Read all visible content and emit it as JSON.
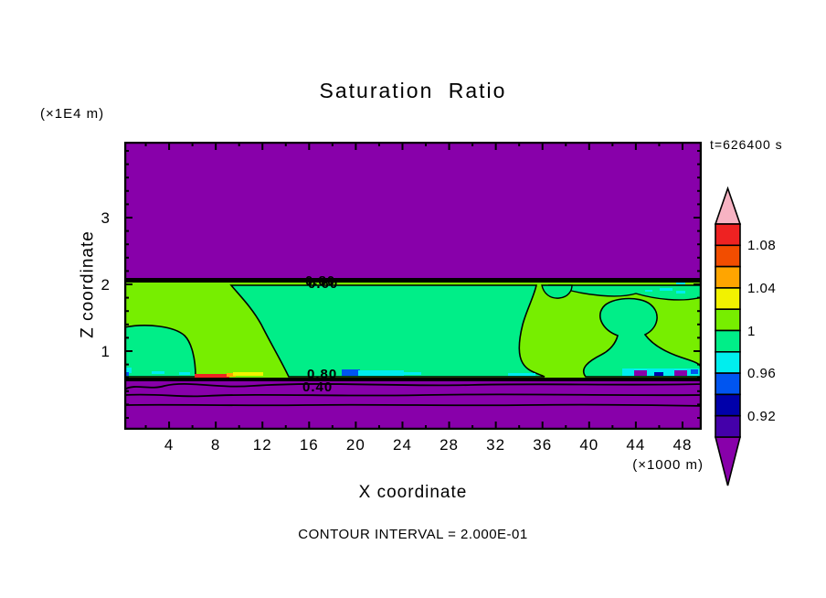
{
  "title": "Saturation Ratio",
  "time_label": "t=626400 s",
  "y_axis_unit": "(×1E4 m)",
  "x_axis_unit": "(×1000 m)",
  "x_axis_label": "X coordinate",
  "y_axis_label": "Z coordinate",
  "footer": "CONTOUR INTERVAL = 2.000E-01",
  "palette": {
    "purple": "#8800AA",
    "indigo": "#4400AA",
    "navy": "#0000AA",
    "blue": "#0055F0",
    "cyan": "#00EEEE",
    "spring_green": "#00EE88",
    "yellow_green": "#77EE00",
    "yellow": "#F2F200",
    "orange": "#FFA500",
    "orange_red": "#F24D00",
    "red": "#EE2222",
    "pink": "#F7B3C3",
    "line": "#000000"
  },
  "x_ticks": {
    "major": [
      4,
      8,
      12,
      16,
      20,
      24,
      28,
      32,
      36,
      40,
      44,
      48
    ],
    "minor": [
      2,
      6,
      10,
      14,
      18,
      22,
      26,
      30,
      34,
      38,
      42,
      46
    ]
  },
  "y_ticks": {
    "major": [
      1,
      2,
      3
    ],
    "minor_step": 0.2,
    "minor_min": 0,
    "minor_max": 4.0
  },
  "colorbar": {
    "above_max_color": "#F7B3C3",
    "below_min_color": "#8800AA",
    "segments_top_to_bottom": [
      {
        "range": "1.08–1.10",
        "color": "#EE2222"
      },
      {
        "range": "1.06–1.08",
        "color": "#F24D00"
      },
      {
        "range": "1.04–1.06",
        "color": "#FFA500"
      },
      {
        "range": "1.02–1.04",
        "color": "#F2F200"
      },
      {
        "range": "1.00–1.02",
        "color": "#77EE00"
      },
      {
        "range": "0.98–1.00",
        "color": "#00EE88"
      },
      {
        "range": "0.96–0.98",
        "color": "#00EEEE"
      },
      {
        "range": "0.94–0.96",
        "color": "#0055F0"
      },
      {
        "range": "0.92–0.94",
        "color": "#0000AA"
      },
      {
        "range": "0.90–0.92",
        "color": "#4400AA"
      }
    ],
    "labels": [
      {
        "text": "1.08",
        "boundary_index": 1
      },
      {
        "text": "1.04",
        "boundary_index": 3
      },
      {
        "text": "1",
        "boundary_index": 5
      },
      {
        "text": "0.96",
        "boundary_index": 7
      },
      {
        "text": "0.92",
        "boundary_index": 9
      }
    ]
  },
  "contour_labels": {
    "top_a": "0.80",
    "top_b": "0.60",
    "mid": "0.80",
    "low": "0.40"
  },
  "chart_data": {
    "type": "heatmap",
    "title": "Saturation Ratio",
    "xlabel": "X coordinate",
    "ylabel": "Z coordinate",
    "x_units": "×1000 m",
    "y_units": "×1E4 m",
    "time": "t=626400 s",
    "contour_interval": 0.2,
    "labeled_contours": [
      0.4,
      0.6,
      0.8
    ],
    "x_ticks": [
      4,
      8,
      12,
      16,
      20,
      24,
      28,
      32,
      36,
      40,
      44,
      48
    ],
    "y_ticks": [
      1,
      2,
      3
    ],
    "x_range_approx": [
      0,
      49.5
    ],
    "y_range_approx": [
      -0.2,
      4.1
    ],
    "colorbar_boundaries": [
      0.9,
      0.92,
      0.94,
      0.96,
      0.98,
      1.0,
      1.02,
      1.04,
      1.06,
      1.08,
      1.1
    ],
    "colorbar_tick_labels": [
      "1.08",
      "1.04",
      "1",
      "0.96",
      "0.92"
    ],
    "regions": [
      {
        "name": "upper region",
        "z_extent_1e4m": [
          2.05,
          4.1
        ],
        "saturation": "< 0.90",
        "color": "purple"
      },
      {
        "name": "cloud band",
        "z_extent_1e4m": [
          0.68,
          2.05
        ],
        "saturation": "0.98–1.02",
        "color": "yellow-green with spring-green patches"
      },
      {
        "name": "sub-cloud strip",
        "z_extent_1e4m": [
          0.6,
          0.68
        ],
        "saturation": "patches 0.90–1.10 (red/yellow/cyan/blue specks)",
        "color": "mixed"
      },
      {
        "name": "lower region",
        "z_extent_1e4m": [
          -0.2,
          0.6
        ],
        "saturation": "< 0.90 with contour lines 0.2/0.4/0.6",
        "color": "purple"
      }
    ]
  }
}
